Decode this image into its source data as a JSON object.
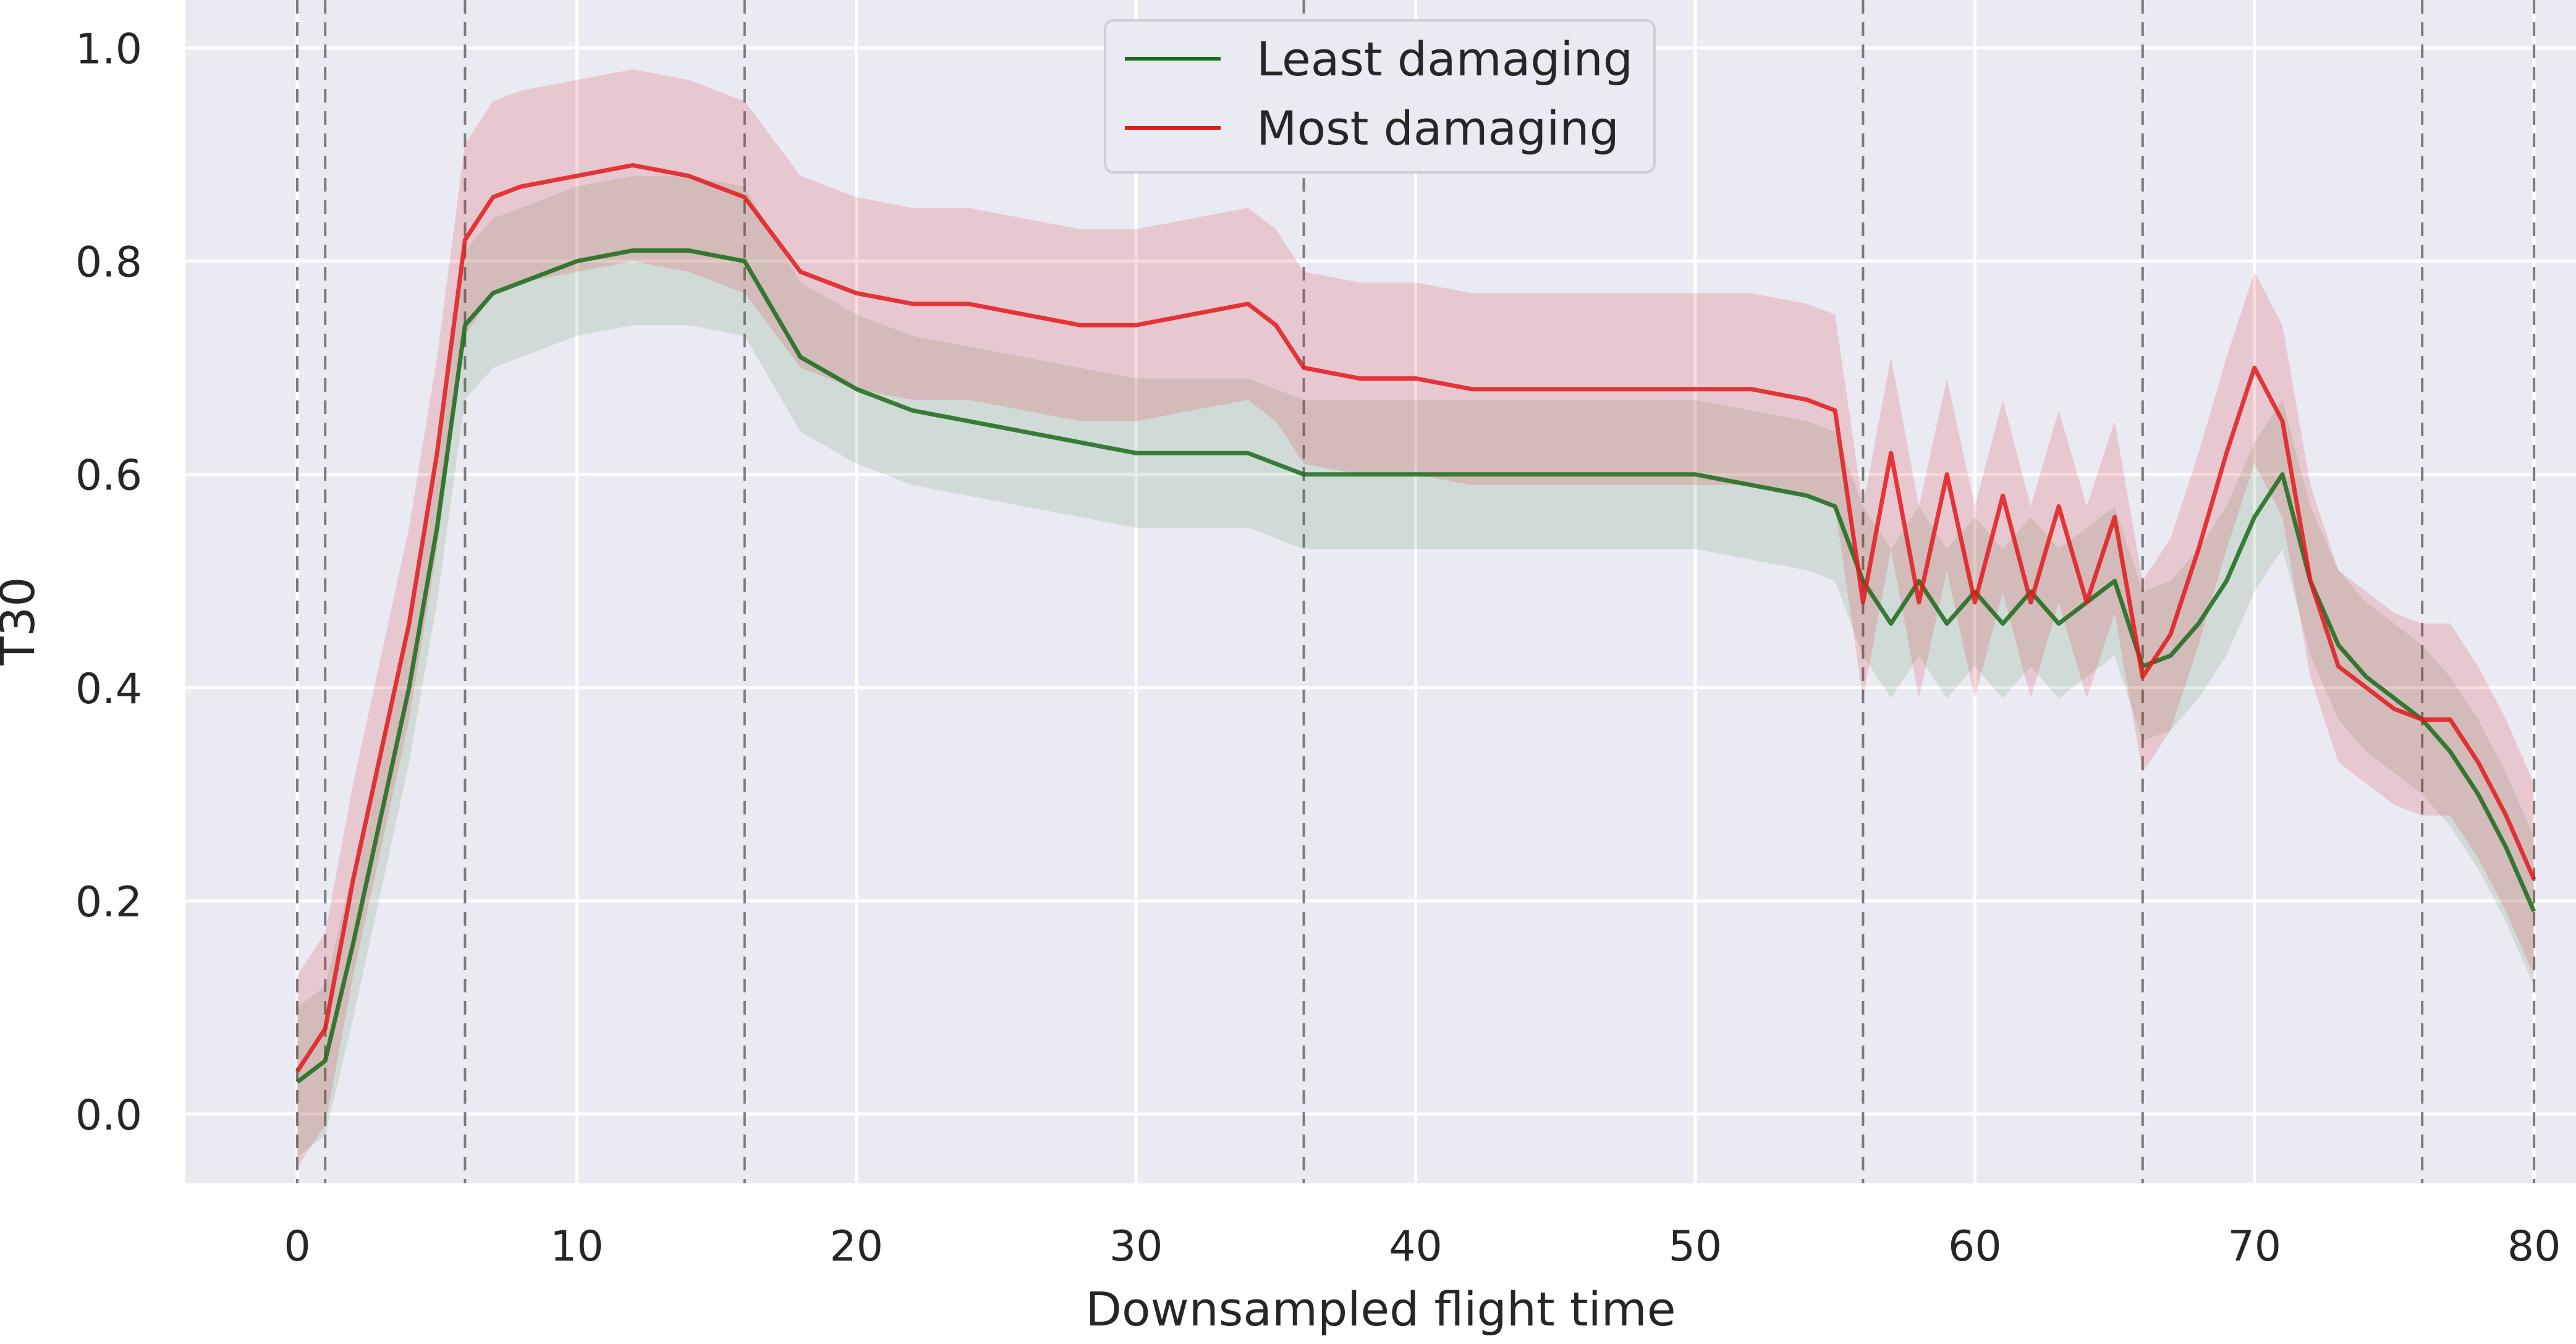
{
  "chart_data": {
    "type": "line",
    "xlabel": "Downsampled flight time",
    "ylabel": "T30",
    "xlim": [
      -4,
      81.5
    ],
    "ylim": [
      -0.065,
      1.045
    ],
    "xticks": [
      0,
      10,
      20,
      30,
      40,
      50,
      60,
      70,
      80
    ],
    "xtick_labels": [
      "0",
      "10",
      "20",
      "30",
      "40",
      "50",
      "60",
      "70",
      "80"
    ],
    "yticks": [
      0.0,
      0.2,
      0.4,
      0.6,
      0.8,
      1.0
    ],
    "ytick_labels": [
      "0.0",
      "0.2",
      "0.4",
      "0.6",
      "0.8",
      "1.0"
    ],
    "grid": true,
    "phase_boundaries_x": [
      0,
      1,
      6,
      16,
      36,
      56,
      66,
      76,
      80
    ],
    "legend": {
      "placement": "top-center",
      "entries": [
        {
          "label": "Least damaging",
          "color": "#1a6b1a"
        },
        {
          "label": "Most damaging",
          "color": "#e31a1c"
        }
      ]
    },
    "series": [
      {
        "name": "Least damaging",
        "color": "#1a6b1a",
        "x": [
          0,
          1,
          2,
          3,
          4,
          5,
          6,
          7,
          8,
          10,
          12,
          14,
          16,
          18,
          20,
          22,
          24,
          26,
          28,
          30,
          32,
          34,
          35,
          36,
          38,
          40,
          42,
          44,
          46,
          48,
          50,
          52,
          54,
          55,
          56,
          57,
          58,
          59,
          60,
          61,
          62,
          63,
          64,
          65,
          66,
          67,
          68,
          69,
          70,
          71,
          72,
          73,
          74,
          75,
          76,
          77,
          78,
          79,
          80
        ],
        "y": [
          0.03,
          0.05,
          0.16,
          0.28,
          0.4,
          0.55,
          0.74,
          0.77,
          0.78,
          0.8,
          0.81,
          0.81,
          0.8,
          0.71,
          0.68,
          0.66,
          0.65,
          0.64,
          0.63,
          0.62,
          0.62,
          0.62,
          0.61,
          0.6,
          0.6,
          0.6,
          0.6,
          0.6,
          0.6,
          0.6,
          0.6,
          0.59,
          0.58,
          0.57,
          0.5,
          0.46,
          0.5,
          0.46,
          0.49,
          0.46,
          0.49,
          0.46,
          0.48,
          0.5,
          0.42,
          0.43,
          0.46,
          0.5,
          0.56,
          0.6,
          0.5,
          0.44,
          0.41,
          0.39,
          0.37,
          0.34,
          0.3,
          0.25,
          0.19
        ]
      },
      {
        "name": "Most damaging",
        "color": "#e31a1c",
        "x": [
          0,
          1,
          2,
          3,
          4,
          5,
          6,
          7,
          8,
          10,
          12,
          14,
          16,
          18,
          20,
          22,
          24,
          26,
          28,
          30,
          32,
          34,
          35,
          36,
          38,
          40,
          42,
          44,
          46,
          48,
          50,
          52,
          54,
          55,
          56,
          57,
          58,
          59,
          60,
          61,
          62,
          63,
          64,
          65,
          66,
          67,
          68,
          69,
          70,
          71,
          72,
          73,
          74,
          75,
          76,
          77,
          78,
          79,
          80
        ],
        "y": [
          0.04,
          0.08,
          0.22,
          0.34,
          0.46,
          0.62,
          0.82,
          0.86,
          0.87,
          0.88,
          0.89,
          0.88,
          0.86,
          0.79,
          0.77,
          0.76,
          0.76,
          0.75,
          0.74,
          0.74,
          0.75,
          0.76,
          0.74,
          0.7,
          0.69,
          0.69,
          0.68,
          0.68,
          0.68,
          0.68,
          0.68,
          0.68,
          0.67,
          0.66,
          0.48,
          0.62,
          0.48,
          0.6,
          0.48,
          0.58,
          0.48,
          0.57,
          0.48,
          0.56,
          0.41,
          0.45,
          0.53,
          0.62,
          0.7,
          0.65,
          0.5,
          0.42,
          0.4,
          0.38,
          0.37,
          0.37,
          0.33,
          0.28,
          0.22
        ]
      }
    ]
  }
}
